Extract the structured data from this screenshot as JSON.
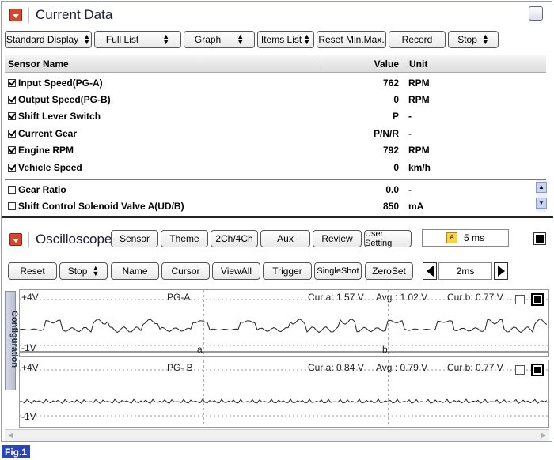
{
  "current_data": {
    "title": "Current Data",
    "toolbar": [
      {
        "label": "Standard Display",
        "dropdown": true
      },
      {
        "label": "Full List",
        "dropdown": true
      },
      {
        "label": "Graph",
        "dropdown": true
      },
      {
        "label": "Items List",
        "dropdown": true
      },
      {
        "label": "Reset Min.Max.",
        "dropdown": false
      },
      {
        "label": "Record",
        "dropdown": false
      },
      {
        "label": "Stop",
        "dropdown": true
      }
    ],
    "columns": {
      "name": "Sensor Name",
      "value": "Value",
      "unit": "Unit"
    },
    "rows": [
      {
        "checked": true,
        "name": "Input Speed(PG-A)",
        "value": "762",
        "unit": "RPM"
      },
      {
        "checked": true,
        "name": "Output Speed(PG-B)",
        "value": "0",
        "unit": "RPM"
      },
      {
        "checked": true,
        "name": "Shift Lever Switch",
        "value": "P",
        "unit": "-"
      },
      {
        "checked": true,
        "name": "Current Gear",
        "value": "P/N/R",
        "unit": "-"
      },
      {
        "checked": true,
        "name": "Engine RPM",
        "value": "792",
        "unit": "RPM"
      },
      {
        "checked": true,
        "name": "Vehicle Speed",
        "value": "0",
        "unit": "km/h"
      },
      {
        "checked": false,
        "name": "Gear Ratio",
        "value": "0.0",
        "unit": "-"
      },
      {
        "checked": false,
        "name": "Shift Control Solenoid Valve A(UD/B)",
        "value": "850",
        "unit": "mA"
      }
    ]
  },
  "oscilloscope": {
    "title": "Oscilloscope",
    "top_buttons": [
      "Sensor",
      "Theme",
      "2Ch/4Ch",
      "Aux",
      "Review",
      "User Setting"
    ],
    "interval": "5 ms",
    "second_buttons": [
      {
        "label": "Reset",
        "dropdown": false
      },
      {
        "label": "Stop",
        "dropdown": true
      },
      {
        "label": "Name",
        "dropdown": false
      },
      {
        "label": "Cursor",
        "dropdown": false
      },
      {
        "label": "ViewAll",
        "dropdown": false
      },
      {
        "label": "Trigger",
        "dropdown": false
      },
      {
        "label": "SingleShot",
        "dropdown": false
      },
      {
        "label": "ZeroSet",
        "dropdown": false
      }
    ],
    "timebase": "2ms",
    "side_tab": "Configuration",
    "cursor_a_label": "a",
    "cursor_b_label": "b",
    "channels": [
      {
        "top": "+4V",
        "bottom": "-1V",
        "name": "PG-A",
        "cur_a": "Cur a: 1.57 V",
        "avg": "Avg : 1.02 V",
        "cur_b": "Cur b: 0.77 V"
      },
      {
        "top": "+4V",
        "bottom": "-1V",
        "name": "PG- B",
        "cur_a": "Cur a: 0.84 V",
        "avg": "Avg : 0.79 V",
        "cur_b": "Cur b: 0.77 V"
      }
    ]
  },
  "figure_label": "Fig.1",
  "colors": {
    "accent_red": "#d9452c",
    "fig_label_bg": "#2b44b8"
  }
}
